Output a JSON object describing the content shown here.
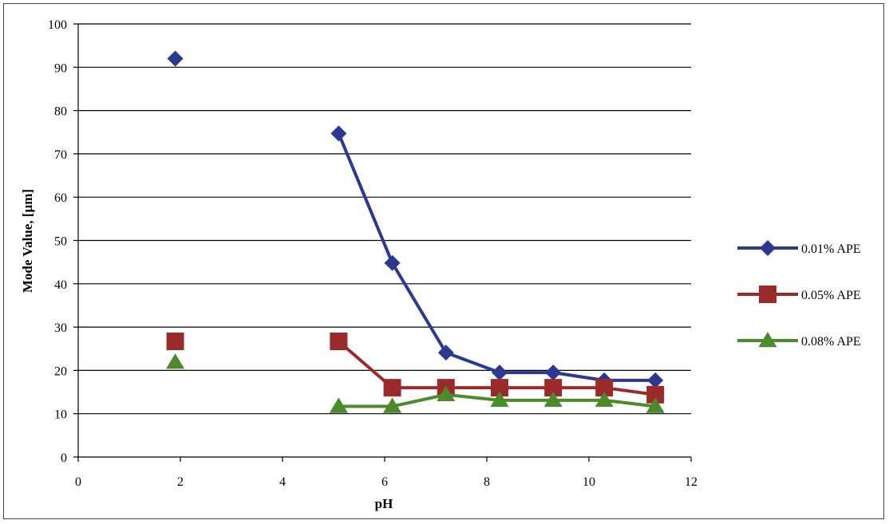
{
  "chart_data": {
    "type": "line",
    "xlabel": "pH",
    "ylabel": "Mode Value, [µm]",
    "xlim": [
      0,
      12
    ],
    "ylim": [
      0,
      100
    ],
    "xticks": [
      0,
      2,
      4,
      6,
      8,
      10,
      12
    ],
    "yticks": [
      0,
      10,
      20,
      30,
      40,
      50,
      60,
      70,
      80,
      90,
      100
    ],
    "grid": "horizontal",
    "legend_position": "right",
    "series": [
      {
        "name": "0.01% APE",
        "color": "#2B3990",
        "marker": "diamond",
        "isolated": [
          {
            "x": 1.9,
            "y": 92
          }
        ],
        "points": [
          {
            "x": 5.1,
            "y": 74.7
          },
          {
            "x": 6.15,
            "y": 44.8
          },
          {
            "x": 7.2,
            "y": 24.1
          },
          {
            "x": 8.25,
            "y": 19.5
          },
          {
            "x": 9.3,
            "y": 19.5
          },
          {
            "x": 10.3,
            "y": 17.7
          },
          {
            "x": 11.3,
            "y": 17.7
          }
        ]
      },
      {
        "name": "0.05% APE",
        "color": "#9B2B2B",
        "marker": "square",
        "isolated": [
          {
            "x": 1.9,
            "y": 26.7
          }
        ],
        "points": [
          {
            "x": 5.1,
            "y": 26.7
          },
          {
            "x": 6.15,
            "y": 16.0
          },
          {
            "x": 7.2,
            "y": 16.0
          },
          {
            "x": 8.25,
            "y": 16.0
          },
          {
            "x": 9.3,
            "y": 16.0
          },
          {
            "x": 10.3,
            "y": 16.0
          },
          {
            "x": 11.3,
            "y": 14.4
          }
        ]
      },
      {
        "name": "0.08% APE",
        "color": "#4C8B2B",
        "marker": "triangle",
        "isolated": [
          {
            "x": 1.9,
            "y": 21.9
          }
        ],
        "points": [
          {
            "x": 5.1,
            "y": 11.7
          },
          {
            "x": 6.15,
            "y": 11.7
          },
          {
            "x": 7.2,
            "y": 14.4
          },
          {
            "x": 8.25,
            "y": 13.1
          },
          {
            "x": 9.3,
            "y": 13.1
          },
          {
            "x": 10.3,
            "y": 13.1
          },
          {
            "x": 11.3,
            "y": 11.7
          }
        ]
      }
    ]
  }
}
